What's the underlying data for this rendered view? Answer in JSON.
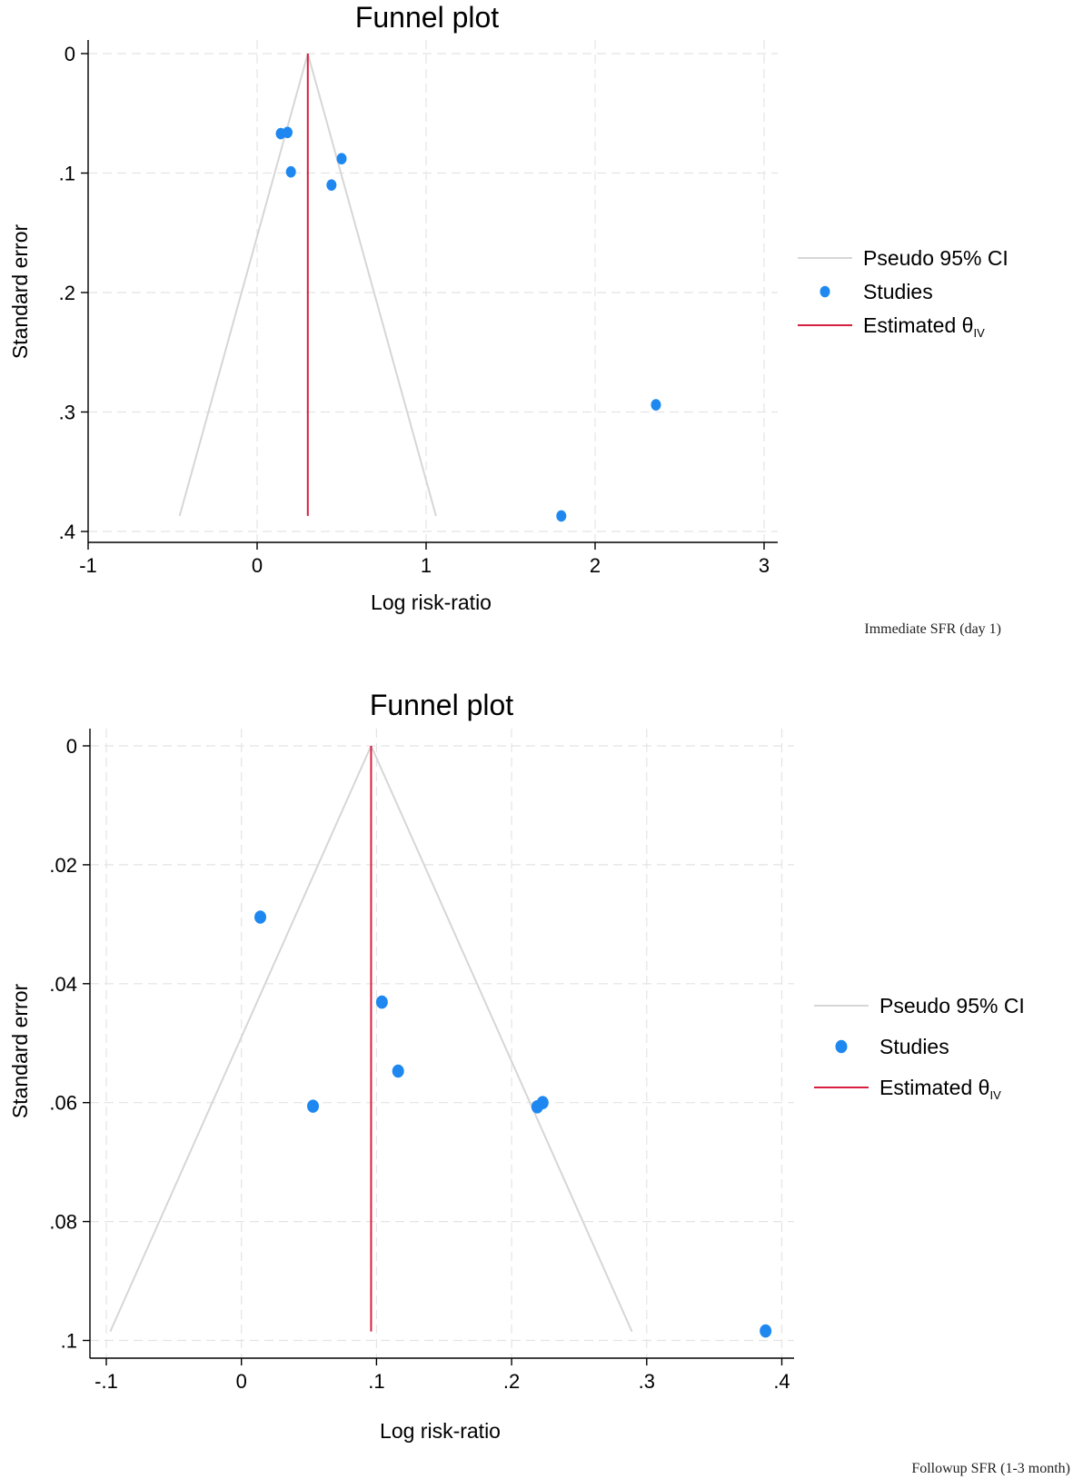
{
  "chart_data": [
    {
      "type": "scatter",
      "title": "Funnel plot",
      "xlabel": "Log risk-ratio",
      "ylabel": "Standard error",
      "caption": "Immediate SFR (day 1)",
      "xlim": [
        -1,
        3
      ],
      "ylim": [
        0,
        0.4
      ],
      "y_inverted": true,
      "x_ticks": [
        -1,
        0,
        1,
        2,
        3
      ],
      "x_tick_labels": [
        "-1",
        "0",
        "1",
        "2",
        "3"
      ],
      "y_ticks": [
        0,
        0.1,
        0.2,
        0.3,
        0.4
      ],
      "y_tick_labels": [
        "0",
        ".1",
        ".2",
        ".3",
        ".4"
      ],
      "estimate": 0.3,
      "ci_se_max": 0.387,
      "grid": true,
      "legend_position": "right",
      "legend": {
        "ci": "Pseudo 95% CI",
        "studies": "Studies",
        "estimated": "Estimated θ",
        "estimated_sub": "IV"
      },
      "colors": {
        "studies": "#1e88f0",
        "estimate": "#d62040",
        "ci": "#d6d6d6"
      },
      "points": [
        {
          "x": 0.14,
          "y": 0.067
        },
        {
          "x": 0.18,
          "y": 0.066
        },
        {
          "x": 0.2,
          "y": 0.099
        },
        {
          "x": 0.44,
          "y": 0.11
        },
        {
          "x": 0.5,
          "y": 0.088
        },
        {
          "x": 2.36,
          "y": 0.294
        },
        {
          "x": 1.8,
          "y": 0.387
        }
      ]
    },
    {
      "type": "scatter",
      "title": "Funnel plot",
      "xlabel": "Log risk-ratio",
      "ylabel": "Standard error",
      "caption": "Followup SFR (1-3 month)",
      "xlim": [
        -0.1,
        0.4
      ],
      "ylim": [
        0,
        0.1
      ],
      "y_inverted": true,
      "x_ticks": [
        -0.1,
        0,
        0.1,
        0.2,
        0.3,
        0.4
      ],
      "x_tick_labels": [
        "-.1",
        "0",
        ".1",
        ".2",
        ".3",
        ".4"
      ],
      "y_ticks": [
        0,
        0.02,
        0.04,
        0.06,
        0.08,
        0.1
      ],
      "y_tick_labels": [
        "0",
        ".02",
        ".04",
        ".06",
        ".08",
        ".1"
      ],
      "estimate": 0.096,
      "ci_se_max": 0.0985,
      "grid": true,
      "legend_position": "right",
      "legend": {
        "ci": "Pseudo 95% CI",
        "studies": "Studies",
        "estimated": "Estimated θ",
        "estimated_sub": "IV"
      },
      "colors": {
        "studies": "#1e88f0",
        "estimate": "#d62040",
        "ci": "#d6d6d6"
      },
      "points": [
        {
          "x": 0.014,
          "y": 0.0288
        },
        {
          "x": 0.104,
          "y": 0.0431
        },
        {
          "x": 0.116,
          "y": 0.0547
        },
        {
          "x": 0.053,
          "y": 0.0606
        },
        {
          "x": 0.219,
          "y": 0.0607
        },
        {
          "x": 0.223,
          "y": 0.06
        },
        {
          "x": 0.388,
          "y": 0.0984
        }
      ]
    }
  ]
}
